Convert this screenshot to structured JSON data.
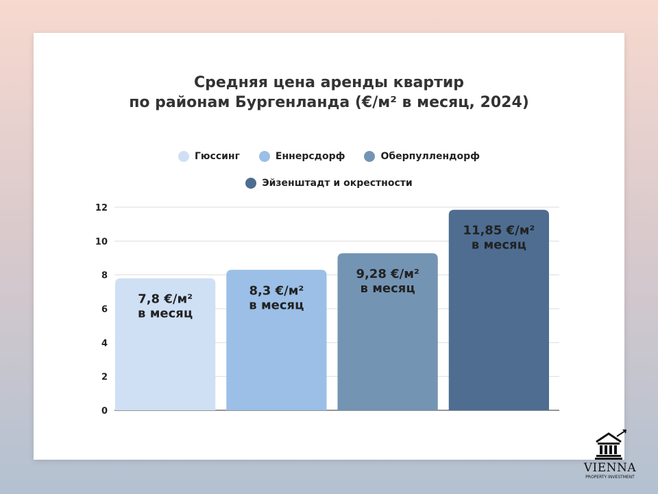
{
  "chart_data": {
    "type": "bar",
    "title_lines": [
      "Средняя цена аренды квартир",
      "по районам Бургенланда (€/м² в месяц, 2024)"
    ],
    "categories": [
      "Гюссинг",
      "Еннерсдорф",
      "Оберпуллендорф",
      "Эйзенштадт и окрестности"
    ],
    "values": [
      7.8,
      8.3,
      9.28,
      11.85
    ],
    "data_labels": [
      [
        "7,8 €/м²",
        "в месяц"
      ],
      [
        "8,3 €/м²",
        "в месяц"
      ],
      [
        "9,28 €/м²",
        "в месяц"
      ],
      [
        "11,85 €/м²",
        "в месяц"
      ]
    ],
    "colors": [
      "#cfe0f5",
      "#9bbfe6",
      "#7494b4",
      "#4e6d91"
    ],
    "ylim": [
      0,
      12
    ],
    "yticks": [
      "0",
      "2",
      "4",
      "6",
      "8",
      "10",
      "12"
    ],
    "xlabel": "",
    "ylabel": "",
    "grid": true,
    "legend_position": "top"
  },
  "logo": {
    "word": "VIENNA",
    "sub": "PROPERTY INVESTMENT"
  }
}
